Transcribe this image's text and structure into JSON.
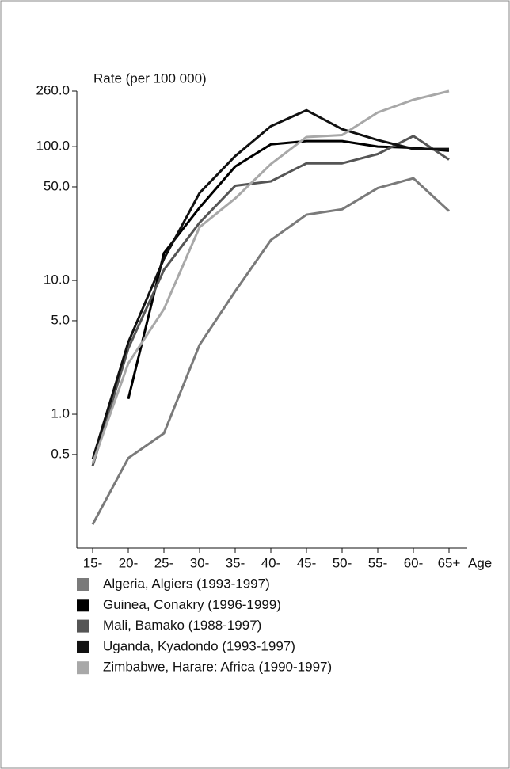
{
  "chart_data": {
    "type": "line",
    "y_label": "Rate (per 100 000)",
    "x_label": "Age",
    "log_scale": true,
    "categories": [
      "15-",
      "20-",
      "25-",
      "30-",
      "35-",
      "40-",
      "45-",
      "50-",
      "55-",
      "60-",
      "65+"
    ],
    "ylim": [
      0.1,
      260
    ],
    "yticks": [
      {
        "value": 0.5,
        "label": "0.5"
      },
      {
        "value": 1,
        "label": "1.0"
      },
      {
        "value": 5,
        "label": "5.0"
      },
      {
        "value": 10,
        "label": "10.0"
      },
      {
        "value": 50,
        "label": "50.0"
      },
      {
        "value": 100,
        "label": "100.0"
      },
      {
        "value": 260,
        "label": "260.0"
      }
    ],
    "series": [
      {
        "name": "Algeria, Algiers (1993-1997)",
        "color": "#7a7a7a",
        "values": [
          0.15,
          0.47,
          0.72,
          3.3,
          8.3,
          20,
          31,
          34,
          49,
          58,
          33
        ]
      },
      {
        "name": "Guinea, Conakry (1996-1999)",
        "color": "#000000",
        "values": [
          null,
          1.3,
          16,
          35,
          71,
          104,
          110,
          110,
          100,
          98,
          93
        ]
      },
      {
        "name": "Mali, Bamako (1988-1997)",
        "color": "#555555",
        "values": [
          0.41,
          3.1,
          12,
          27,
          51,
          55,
          75,
          75,
          88,
          120,
          80
        ]
      },
      {
        "name": "Uganda, Kyadondo (1993-1997)",
        "color": "#111111",
        "values": [
          0.46,
          3.45,
          14.5,
          45,
          85,
          142,
          187,
          135,
          112,
          96,
          96
        ]
      },
      {
        "name": "Zimbabwe, Harare: Africa (1990-1997)",
        "color": "#a8a8a8",
        "values": [
          0.43,
          2.4,
          6.1,
          25,
          41,
          74,
          118,
          122,
          180,
          224,
          260
        ]
      }
    ]
  }
}
